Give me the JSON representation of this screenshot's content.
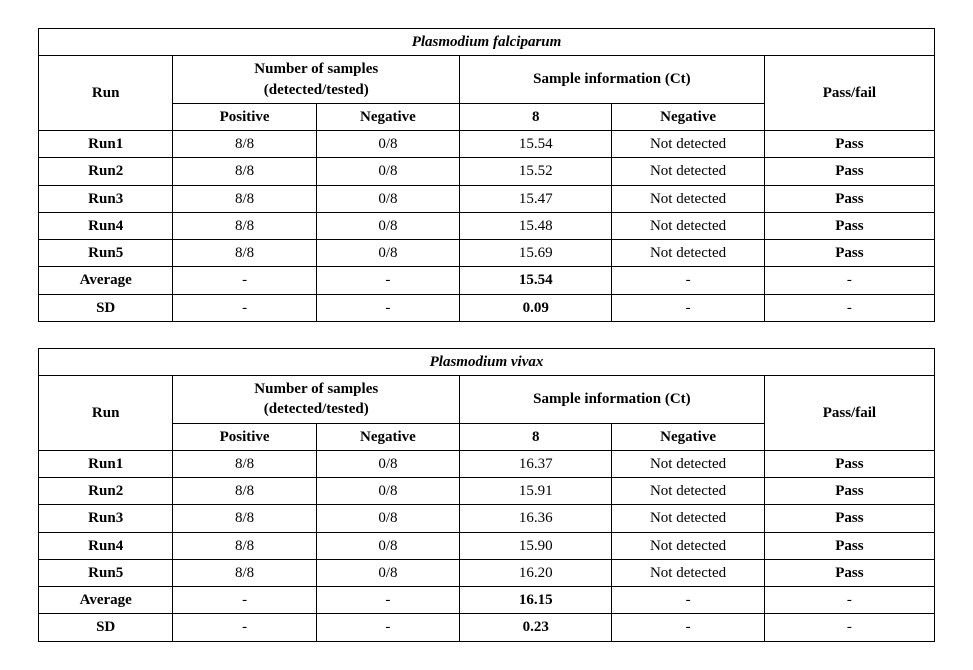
{
  "tables": [
    {
      "title": "Plasmodium falciparum",
      "header": {
        "run": "Run",
        "samples_line1": "Number of samples",
        "samples_line2": "(detected/tested)",
        "positive": "Positive",
        "negative": "Negative",
        "sample_info": "Sample information (Ct)",
        "ct_col": "8",
        "ct_neg_col": "Negative",
        "passfail": "Pass/fail"
      },
      "rows": [
        {
          "run": "Run1",
          "pos": "8/8",
          "neg": "0/8",
          "ct": "15.54",
          "ctneg": "Not detected",
          "pf": "Pass"
        },
        {
          "run": "Run2",
          "pos": "8/8",
          "neg": "0/8",
          "ct": "15.52",
          "ctneg": "Not detected",
          "pf": "Pass"
        },
        {
          "run": "Run3",
          "pos": "8/8",
          "neg": "0/8",
          "ct": "15.47",
          "ctneg": "Not detected",
          "pf": "Pass"
        },
        {
          "run": "Run4",
          "pos": "8/8",
          "neg": "0/8",
          "ct": "15.48",
          "ctneg": "Not detected",
          "pf": "Pass"
        },
        {
          "run": "Run5",
          "pos": "8/8",
          "neg": "0/8",
          "ct": "15.69",
          "ctneg": "Not detected",
          "pf": "Pass"
        }
      ],
      "summary": {
        "average_label": "Average",
        "average_ct": "15.54",
        "sd_label": "SD",
        "sd_ct": "0.09",
        "dash": "-"
      }
    },
    {
      "title": "Plasmodium vivax",
      "header": {
        "run": "Run",
        "samples_line1": "Number of samples",
        "samples_line2": "(detected/tested)",
        "positive": "Positive",
        "negative": "Negative",
        "sample_info": "Sample information (Ct)",
        "ct_col": "8",
        "ct_neg_col": "Negative",
        "passfail": "Pass/fail"
      },
      "rows": [
        {
          "run": "Run1",
          "pos": "8/8",
          "neg": "0/8",
          "ct": "16.37",
          "ctneg": "Not detected",
          "pf": "Pass"
        },
        {
          "run": "Run2",
          "pos": "8/8",
          "neg": "0/8",
          "ct": "15.91",
          "ctneg": "Not detected",
          "pf": "Pass"
        },
        {
          "run": "Run3",
          "pos": "8/8",
          "neg": "0/8",
          "ct": "16.36",
          "ctneg": "Not detected",
          "pf": "Pass"
        },
        {
          "run": "Run4",
          "pos": "8/8",
          "neg": "0/8",
          "ct": "15.90",
          "ctneg": "Not detected",
          "pf": "Pass"
        },
        {
          "run": "Run5",
          "pos": "8/8",
          "neg": "0/8",
          "ct": "16.20",
          "ctneg": "Not detected",
          "pf": "Pass"
        }
      ],
      "summary": {
        "average_label": "Average",
        "average_ct": "16.15",
        "sd_label": "SD",
        "sd_ct": "0.23",
        "dash": "-"
      }
    }
  ]
}
